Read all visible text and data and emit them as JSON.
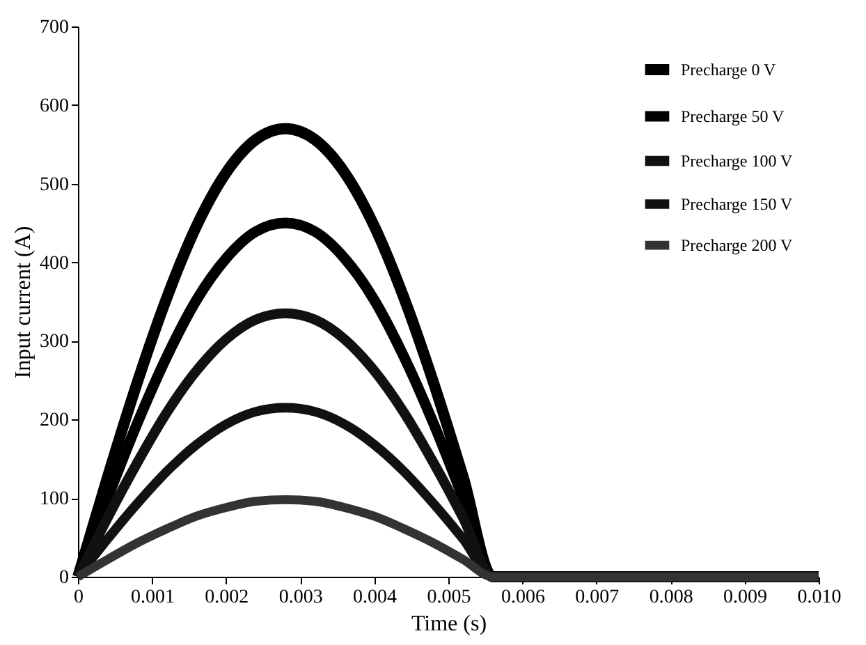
{
  "chart_data": {
    "type": "line",
    "xlabel": "Time (s)",
    "ylabel": "Input current (A)",
    "x": [
      0,
      0.0004,
      0.0008,
      0.0012,
      0.0016,
      0.002,
      0.0024,
      0.0028,
      0.0032,
      0.0036,
      0.004,
      0.0044,
      0.0048,
      0.0052,
      0.0056,
      0.006,
      0.007,
      0.008,
      0.009,
      0.01
    ],
    "series": [
      {
        "name": "Precharge 0 V",
        "color": "#000000",
        "values": [
          0,
          127,
          247,
          355,
          446,
          514,
          556,
          570,
          556,
          514,
          446,
          355,
          247,
          127,
          0,
          0,
          0,
          0,
          0,
          0
        ]
      },
      {
        "name": "Precharge 50 V",
        "color": "#000000",
        "values": [
          0,
          100,
          195,
          280,
          352,
          405,
          439,
          450,
          439,
          405,
          352,
          280,
          195,
          100,
          0,
          0,
          0,
          0,
          0,
          0
        ]
      },
      {
        "name": "Precharge 100 V",
        "color": "#111111",
        "values": [
          0,
          75,
          145,
          209,
          262,
          302,
          327,
          335,
          327,
          302,
          262,
          209,
          145,
          75,
          0,
          0,
          0,
          0,
          0,
          0
        ]
      },
      {
        "name": "Precharge 150 V",
        "color": "#111111",
        "values": [
          0,
          48,
          93,
          134,
          168,
          194,
          210,
          215,
          210,
          194,
          168,
          134,
          93,
          48,
          0,
          0,
          0,
          0,
          0,
          0
        ]
      },
      {
        "name": "Precharge 200 V",
        "color": "#333333",
        "values": [
          0,
          22,
          43,
          61,
          77,
          88,
          96,
          98,
          96,
          88,
          77,
          61,
          43,
          22,
          0,
          0,
          0,
          0,
          0,
          0
        ]
      }
    ],
    "xlim": [
      0,
      0.01
    ],
    "xticks": [
      0,
      0.001,
      0.002,
      0.003,
      0.004,
      0.005,
      0.006,
      0.007,
      0.008,
      0.009,
      {
        "value": 0.01,
        "label": "0.010"
      }
    ],
    "ylim": [
      0,
      700
    ],
    "yticks": [
      0,
      100,
      200,
      300,
      400,
      500,
      600,
      700
    ],
    "grid": false,
    "legend": "top right",
    "marker": "none",
    "line_style": "solid"
  }
}
